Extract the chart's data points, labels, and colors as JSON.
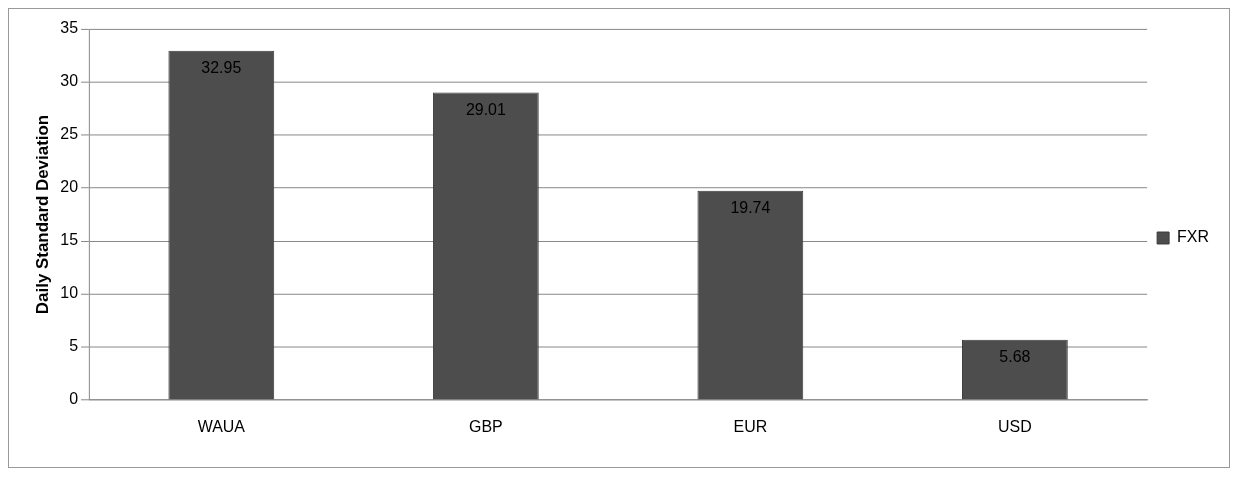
{
  "chart_data": {
    "type": "bar",
    "ylabel": "Daily Standard Deviation",
    "categories": [
      "WAUA",
      "GBP",
      "EUR",
      "USD"
    ],
    "series": [
      {
        "name": "FXR",
        "color": "#4d4d4d",
        "values": [
          32.95,
          29.01,
          19.74,
          5.68
        ]
      }
    ],
    "ylim": [
      0,
      35
    ],
    "yticks": [
      0,
      5,
      10,
      15,
      20,
      25,
      30,
      35
    ],
    "grid": "y",
    "legend": "right",
    "data_labels": true
  }
}
